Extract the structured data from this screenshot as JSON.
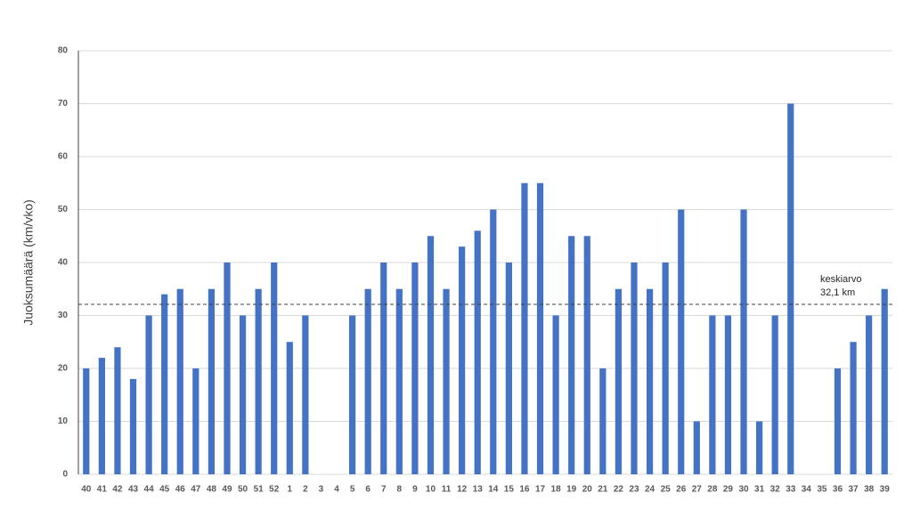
{
  "chart_data": {
    "type": "bar",
    "y_label": "Juoksumäärä (km/vko)",
    "categories": [
      "40",
      "41",
      "42",
      "43",
      "44",
      "45",
      "46",
      "47",
      "48",
      "49",
      "50",
      "51",
      "52",
      "1",
      "2",
      "3",
      "4",
      "5",
      "6",
      "7",
      "8",
      "9",
      "10",
      "11",
      "12",
      "13",
      "14",
      "15",
      "16",
      "17",
      "18",
      "19",
      "20",
      "21",
      "22",
      "23",
      "24",
      "25",
      "26",
      "27",
      "28",
      "29",
      "30",
      "31",
      "32",
      "33",
      "34",
      "35",
      "36",
      "37",
      "38",
      "39"
    ],
    "values": [
      20,
      22,
      24,
      18,
      30,
      34,
      35,
      20,
      35,
      40,
      30,
      35,
      40,
      25,
      30,
      0,
      0,
      30,
      35,
      40,
      35,
      40,
      45,
      35,
      43,
      46,
      50,
      40,
      55,
      55,
      30,
      45,
      45,
      20,
      35,
      40,
      35,
      40,
      50,
      10,
      30,
      30,
      50,
      10,
      30,
      70,
      0,
      0,
      20,
      25,
      30,
      35
    ],
    "color": "#4472c4",
    "ylim": [
      0,
      80
    ],
    "yticks": [
      0,
      10,
      20,
      30,
      40,
      50,
      60,
      70,
      80
    ],
    "grid": true,
    "average_line": 32.1,
    "annotations": [
      "keskiarvo",
      "32,1 km"
    ]
  }
}
